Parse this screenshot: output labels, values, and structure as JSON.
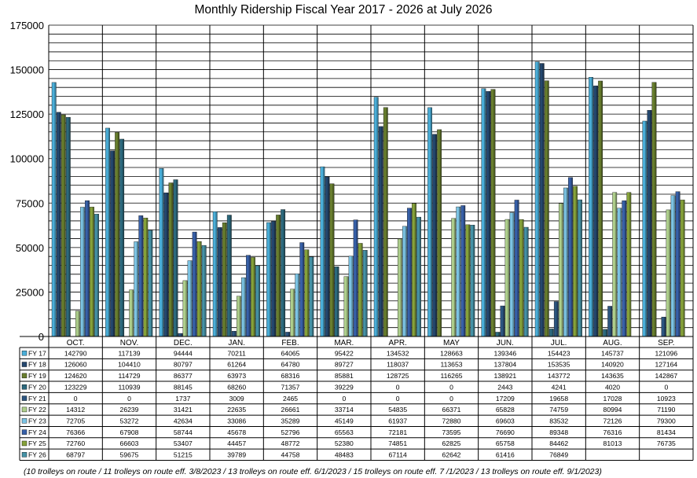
{
  "chart_data": {
    "type": "bar",
    "title": "Monthly Ridership Fiscal Year 2017 - 2026 at July 2026",
    "footnote": "(10 trolleys on route / 11 trolleys on route eff. 3/8/2023 / 13 trolleys on route eff. 6/1/2023 / 15 trolleys on route eff. 7 /1/2023 / 13 trolleys on route eff. 9/1/2023)",
    "categories": [
      "OCT.",
      "NOV.",
      "DEC.",
      "JAN.",
      "FEB.",
      "MAR.",
      "APR.",
      "MAY",
      "JUN.",
      "JUL.",
      "AUG.",
      "SEP."
    ],
    "ylim": [
      0,
      175000
    ],
    "yticks": [
      0,
      25000,
      50000,
      75000,
      100000,
      125000,
      150000,
      175000
    ],
    "grid": true,
    "legend": "data-table-rows",
    "series": [
      {
        "name": "FY 17",
        "color": "#4aaed8",
        "values": [
          142790,
          117139,
          94444,
          70211,
          64065,
          95422,
          134532,
          128663,
          139346,
          154423,
          145737,
          121096
        ]
      },
      {
        "name": "FY 18",
        "color": "#24476e",
        "values": [
          126060,
          104410,
          80797,
          61264,
          64780,
          89727,
          118037,
          113653,
          137804,
          153535,
          140920,
          127164
        ]
      },
      {
        "name": "FY 19",
        "color": "#687e2e",
        "values": [
          124620,
          114729,
          86377,
          63973,
          68316,
          85881,
          128725,
          116265,
          138921,
          143772,
          143635,
          142867
        ]
      },
      {
        "name": "FY 20",
        "color": "#2c6a7e",
        "values": [
          123229,
          110939,
          88145,
          68260,
          71357,
          39229,
          0,
          0,
          2443,
          4241,
          4020,
          0
        ]
      },
      {
        "name": "FY 21",
        "color": "#2c5580",
        "values": [
          0,
          0,
          1737,
          3009,
          2465,
          0,
          0,
          0,
          17209,
          19658,
          17028,
          10923
        ]
      },
      {
        "name": "FY 22",
        "color": "#aecf8c",
        "values": [
          14312,
          26239,
          31421,
          22635,
          26661,
          33714,
          54835,
          66371,
          65828,
          74759,
          80994,
          71190
        ]
      },
      {
        "name": "FY 23",
        "color": "#7cc4e4",
        "values": [
          72705,
          53272,
          42634,
          33086,
          35289,
          45149,
          61937,
          72880,
          69603,
          83532,
          72126,
          79300
        ]
      },
      {
        "name": "FY 24",
        "color": "#3760a8",
        "values": [
          76366,
          67908,
          58744,
          45678,
          52796,
          65563,
          72181,
          73595,
          76690,
          89348,
          76316,
          81434
        ]
      },
      {
        "name": "FY 25",
        "color": "#86a23a",
        "values": [
          72760,
          66603,
          53407,
          44457,
          48772,
          52380,
          74851,
          62825,
          65758,
          84462,
          81013,
          76735
        ]
      },
      {
        "name": "FY 26",
        "color": "#4592a6",
        "values": [
          68797,
          59675,
          51215,
          39789,
          44758,
          48483,
          67114,
          62642,
          61416,
          76849,
          null,
          null
        ]
      }
    ]
  }
}
